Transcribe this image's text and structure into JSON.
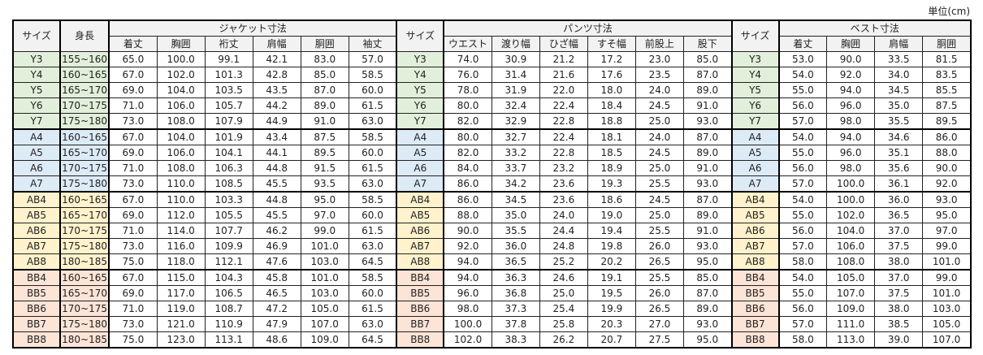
{
  "unit_label": "単位(cm)",
  "headers": {
    "size": "サイズ",
    "height": "身長",
    "jacket": "ジャケット寸法",
    "pants": "パンツ寸法",
    "vest": "ベスト寸法",
    "jacket_cols": [
      "着丈",
      "胸囲",
      "裄丈",
      "肩幅",
      "胴囲",
      "袖丈"
    ],
    "pants_cols": [
      "ウエスト",
      "渡り幅",
      "ひざ幅",
      "すそ幅",
      "前股上",
      "股下"
    ],
    "vest_cols": [
      "着丈",
      "胸囲",
      "肩幅",
      "胴囲"
    ]
  },
  "group_colors": {
    "Y": "#e2efda",
    "A": "#ddebf7",
    "AB": "#fff2cc",
    "BB": "#fce4d6"
  },
  "rows": [
    {
      "group": "Y",
      "size": "Y3",
      "height": "155~160",
      "jacket": [
        "65.0",
        "100.0",
        "99.1",
        "42.1",
        "83.0",
        "57.0"
      ],
      "pants": [
        "74.0",
        "30.9",
        "21.2",
        "17.2",
        "23.0",
        "85.0"
      ],
      "vest": [
        "53.0",
        "90.0",
        "33.5",
        "81.5"
      ]
    },
    {
      "group": "Y",
      "size": "Y4",
      "height": "160~165",
      "jacket": [
        "67.0",
        "102.0",
        "101.3",
        "42.8",
        "85.0",
        "58.5"
      ],
      "pants": [
        "76.0",
        "31.4",
        "21.6",
        "17.6",
        "23.5",
        "87.0"
      ],
      "vest": [
        "54.0",
        "92.0",
        "34.0",
        "83.5"
      ]
    },
    {
      "group": "Y",
      "size": "Y5",
      "height": "165~170",
      "jacket": [
        "69.0",
        "104.0",
        "103.5",
        "43.5",
        "87.0",
        "60.0"
      ],
      "pants": [
        "78.0",
        "31.9",
        "22.0",
        "18.0",
        "24.0",
        "89.0"
      ],
      "vest": [
        "55.0",
        "94.0",
        "34.5",
        "85.5"
      ]
    },
    {
      "group": "Y",
      "size": "Y6",
      "height": "170~175",
      "jacket": [
        "71.0",
        "106.0",
        "105.7",
        "44.2",
        "89.0",
        "61.5"
      ],
      "pants": [
        "80.0",
        "32.4",
        "22.4",
        "18.4",
        "24.5",
        "91.0"
      ],
      "vest": [
        "56.0",
        "96.0",
        "35.0",
        "87.5"
      ]
    },
    {
      "group": "Y",
      "size": "Y7",
      "height": "175~180",
      "jacket": [
        "73.0",
        "108.0",
        "107.9",
        "44.9",
        "91.0",
        "63.0"
      ],
      "pants": [
        "82.0",
        "32.9",
        "22.8",
        "18.8",
        "25.0",
        "93.0"
      ],
      "vest": [
        "57.0",
        "98.0",
        "35.5",
        "89.5"
      ]
    },
    {
      "group": "A",
      "size": "A4",
      "height": "160~165",
      "jacket": [
        "67.0",
        "104.0",
        "101.9",
        "43.4",
        "87.5",
        "58.5"
      ],
      "pants": [
        "80.0",
        "32.7",
        "22.4",
        "18.1",
        "24.0",
        "87.0"
      ],
      "vest": [
        "54.0",
        "94.0",
        "34.6",
        "86.0"
      ]
    },
    {
      "group": "A",
      "size": "A5",
      "height": "165~170",
      "jacket": [
        "69.0",
        "106.0",
        "104.1",
        "44.1",
        "89.5",
        "60.0"
      ],
      "pants": [
        "82.0",
        "33.2",
        "22.8",
        "18.5",
        "24.5",
        "89.0"
      ],
      "vest": [
        "55.0",
        "96.0",
        "35.1",
        "88.0"
      ]
    },
    {
      "group": "A",
      "size": "A6",
      "height": "170~175",
      "jacket": [
        "71.0",
        "108.0",
        "106.3",
        "44.8",
        "91.5",
        "61.5"
      ],
      "pants": [
        "84.0",
        "33.7",
        "23.2",
        "18.9",
        "25.0",
        "91.0"
      ],
      "vest": [
        "56.0",
        "98.0",
        "35.6",
        "90.0"
      ]
    },
    {
      "group": "A",
      "size": "A7",
      "height": "175~180",
      "jacket": [
        "73.0",
        "110.0",
        "108.5",
        "45.5",
        "93.5",
        "63.0"
      ],
      "pants": [
        "86.0",
        "34.2",
        "23.6",
        "19.3",
        "25.5",
        "93.0"
      ],
      "vest": [
        "57.0",
        "100.0",
        "36.1",
        "92.0"
      ]
    },
    {
      "group": "AB",
      "size": "AB4",
      "height": "160~165",
      "jacket": [
        "67.0",
        "110.0",
        "103.3",
        "44.8",
        "95.0",
        "58.5"
      ],
      "pants": [
        "86.0",
        "34.5",
        "23.6",
        "18.6",
        "24.5",
        "87.0"
      ],
      "vest": [
        "54.0",
        "100.0",
        "36.0",
        "93.0"
      ]
    },
    {
      "group": "AB",
      "size": "AB5",
      "height": "165~170",
      "jacket": [
        "69.0",
        "112.0",
        "105.5",
        "45.5",
        "97.0",
        "60.0"
      ],
      "pants": [
        "88.0",
        "35.0",
        "24.0",
        "19.0",
        "25.0",
        "89.0"
      ],
      "vest": [
        "55.0",
        "102.0",
        "36.5",
        "95.0"
      ]
    },
    {
      "group": "AB",
      "size": "AB6",
      "height": "170~175",
      "jacket": [
        "71.0",
        "114.0",
        "107.7",
        "46.2",
        "99.0",
        "61.5"
      ],
      "pants": [
        "90.0",
        "35.5",
        "24.4",
        "19.4",
        "25.5",
        "91.0"
      ],
      "vest": [
        "56.0",
        "104.0",
        "37.0",
        "97.0"
      ]
    },
    {
      "group": "AB",
      "size": "AB7",
      "height": "175~180",
      "jacket": [
        "73.0",
        "116.0",
        "109.9",
        "46.9",
        "101.0",
        "63.0"
      ],
      "pants": [
        "92.0",
        "36.0",
        "24.8",
        "19.8",
        "26.0",
        "93.0"
      ],
      "vest": [
        "57.0",
        "106.0",
        "37.5",
        "99.0"
      ]
    },
    {
      "group": "AB",
      "size": "AB8",
      "height": "180~185",
      "jacket": [
        "75.0",
        "118.0",
        "112.1",
        "47.6",
        "103.0",
        "64.5"
      ],
      "pants": [
        "94.0",
        "36.5",
        "25.2",
        "20.2",
        "26.5",
        "95.0"
      ],
      "vest": [
        "58.0",
        "108.0",
        "38.0",
        "101.0"
      ]
    },
    {
      "group": "BB",
      "size": "BB4",
      "height": "160~165",
      "jacket": [
        "67.0",
        "115.0",
        "104.3",
        "45.8",
        "101.0",
        "58.5"
      ],
      "pants": [
        "94.0",
        "36.3",
        "24.6",
        "19.1",
        "25.5",
        "85.0"
      ],
      "vest": [
        "54.0",
        "105.0",
        "37.0",
        "99.0"
      ]
    },
    {
      "group": "BB",
      "size": "BB5",
      "height": "165~170",
      "jacket": [
        "69.0",
        "117.0",
        "106.5",
        "46.5",
        "103.0",
        "60.0"
      ],
      "pants": [
        "96.0",
        "36.8",
        "25.0",
        "19.5",
        "26.0",
        "87.0"
      ],
      "vest": [
        "55.0",
        "107.0",
        "37.5",
        "101.0"
      ]
    },
    {
      "group": "BB",
      "size": "BB6",
      "height": "170~175",
      "jacket": [
        "71.0",
        "119.0",
        "108.7",
        "47.2",
        "105.0",
        "61.5"
      ],
      "pants": [
        "98.0",
        "37.3",
        "25.4",
        "19.9",
        "26.5",
        "89.0"
      ],
      "vest": [
        "56.0",
        "109.0",
        "38.0",
        "103.0"
      ]
    },
    {
      "group": "BB",
      "size": "BB7",
      "height": "175~180",
      "jacket": [
        "73.0",
        "121.0",
        "110.9",
        "47.9",
        "107.0",
        "63.0"
      ],
      "pants": [
        "100.0",
        "37.8",
        "25.8",
        "20.3",
        "27.0",
        "93.0"
      ],
      "vest": [
        "57.0",
        "111.0",
        "38.5",
        "105.0"
      ]
    },
    {
      "group": "BB",
      "size": "BB8",
      "height": "180~185",
      "jacket": [
        "75.0",
        "123.0",
        "113.1",
        "48.6",
        "109.0",
        "64.5"
      ],
      "pants": [
        "102.0",
        "38.3",
        "26.2",
        "20.7",
        "27.5",
        "95.0"
      ],
      "vest": [
        "58.0",
        "113.0",
        "39.0",
        "107.0"
      ]
    }
  ]
}
